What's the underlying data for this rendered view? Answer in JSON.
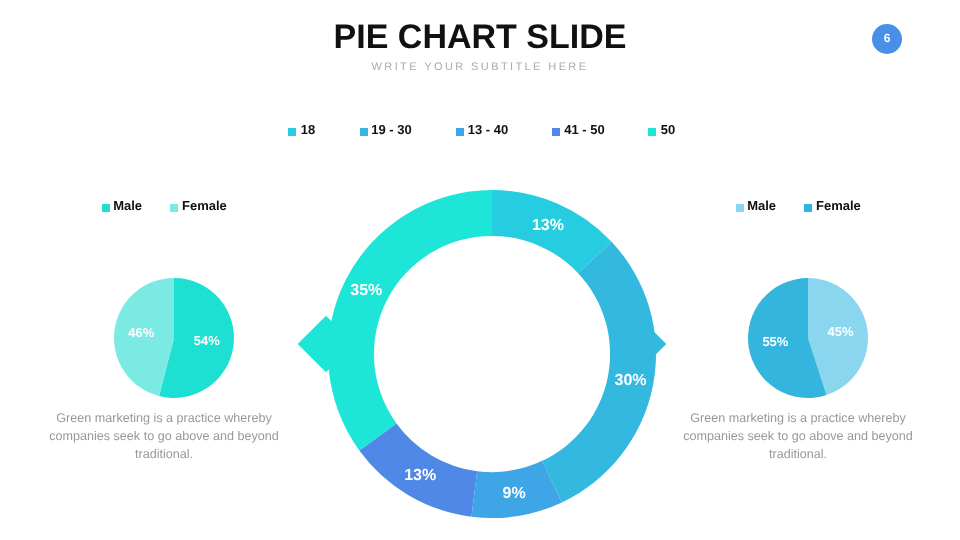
{
  "chart_data": [
    {
      "type": "pie",
      "categories": [
        "Male",
        "Female"
      ],
      "values": [
        54,
        46
      ],
      "colors": [
        "#1ee0d2",
        "#7aeae3"
      ],
      "value_labels": [
        "54%",
        "46%"
      ],
      "legend": "top",
      "annotations": [
        "Green marketing is a practice whereby companies seek to go above and beyond traditional."
      ]
    },
    {
      "type": "donut",
      "title": "PIE CHART SLIDE",
      "subtitle": "WRITE YOUR SUBTITLE HERE",
      "categories": [
        "18",
        "19 - 30",
        "13 - 40",
        "41 - 50",
        "50"
      ],
      "values": [
        13,
        30,
        9,
        13,
        35
      ],
      "colors": [
        "#26cde0",
        "#33b8e0",
        "#3ea5e6",
        "#4f88e6",
        "#1de6d8"
      ],
      "value_labels": [
        "13%",
        "30%",
        "9%",
        "13%",
        "35%"
      ],
      "legend": "top",
      "annotations": [
        "6"
      ]
    },
    {
      "type": "pie",
      "categories": [
        "Male",
        "Female"
      ],
      "values": [
        45,
        55
      ],
      "colors": [
        "#8ad6ee",
        "#33b5dd"
      ],
      "value_labels": [
        "45%",
        "55%"
      ],
      "legend": "top",
      "annotations": [
        "Green marketing is a practice whereby companies seek to go above and beyond traditional."
      ]
    }
  ]
}
